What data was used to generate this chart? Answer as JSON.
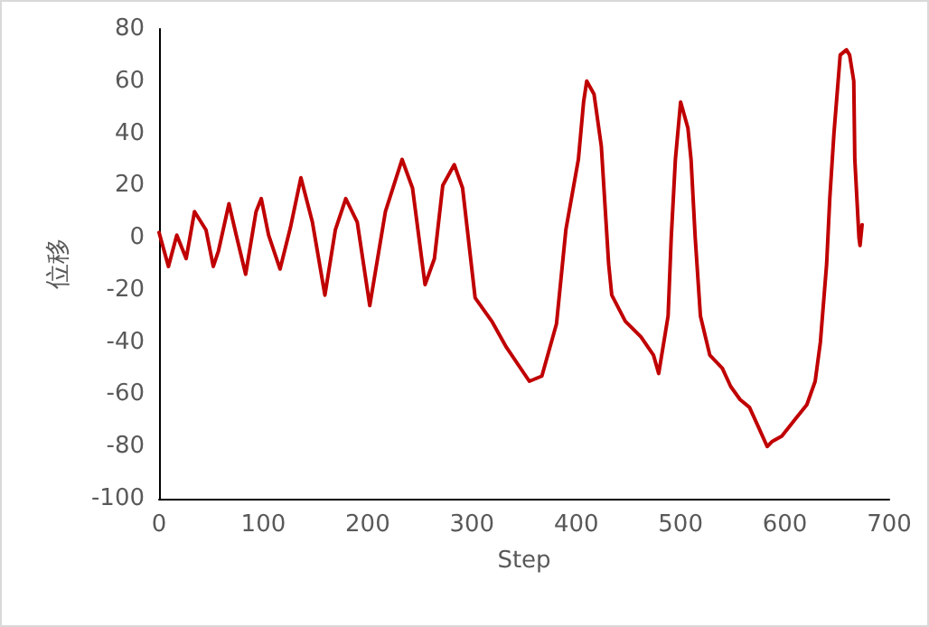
{
  "chart_data": {
    "type": "line",
    "xlabel": "Step",
    "ylabel": "位移",
    "xlim": [
      0,
      700
    ],
    "xticks": [
      0,
      100,
      200,
      300,
      400,
      500,
      600,
      700
    ],
    "ylim": [
      -100,
      80
    ],
    "yticks": [
      -100,
      -80,
      -60,
      -40,
      -20,
      0,
      20,
      40,
      60,
      80
    ],
    "marker": "none",
    "line_style": "solid",
    "series": [
      {
        "color": "#c00000",
        "x": [
          0,
          9,
          17,
          26,
          34,
          45,
          52,
          57,
          67,
          74,
          83,
          93,
          98,
          105,
          116,
          126,
          136,
          147,
          159,
          169,
          179,
          190,
          202,
          217,
          233,
          243,
          255,
          264,
          272,
          283,
          291,
          303,
          319,
          333,
          355,
          367,
          381,
          390,
          402,
          407,
          410,
          417,
          424,
          431,
          434,
          447,
          462,
          474,
          479,
          488,
          491,
          495,
          500,
          507,
          510,
          514,
          519,
          528,
          540,
          548,
          557,
          566,
          574,
          583,
          588,
          597,
          609,
          621,
          629,
          634,
          640,
          643,
          647,
          650,
          653,
          659,
          662,
          666,
          667,
          671,
          672,
          674
        ],
        "values": [
          2,
          -11,
          1,
          -8,
          10,
          3,
          -11,
          -5,
          13,
          1,
          -14,
          10,
          15,
          1,
          -12,
          4,
          23,
          6,
          -22,
          3,
          15,
          6,
          -26,
          10,
          30,
          19,
          -18,
          -8,
          20,
          28,
          19,
          -23,
          -32,
          -42,
          -55,
          -53,
          -33,
          3,
          30,
          52,
          60,
          55,
          35,
          -10,
          -22,
          -32,
          -38,
          -45,
          -52,
          -30,
          0,
          30,
          52,
          42,
          30,
          0,
          -30,
          -45,
          -50,
          -57,
          -62,
          -65,
          -72,
          -80,
          -78,
          -76,
          -70,
          -64,
          -55,
          -40,
          -10,
          15,
          40,
          55,
          70,
          72,
          70,
          60,
          30,
          0,
          -3,
          5
        ]
      }
    ]
  }
}
